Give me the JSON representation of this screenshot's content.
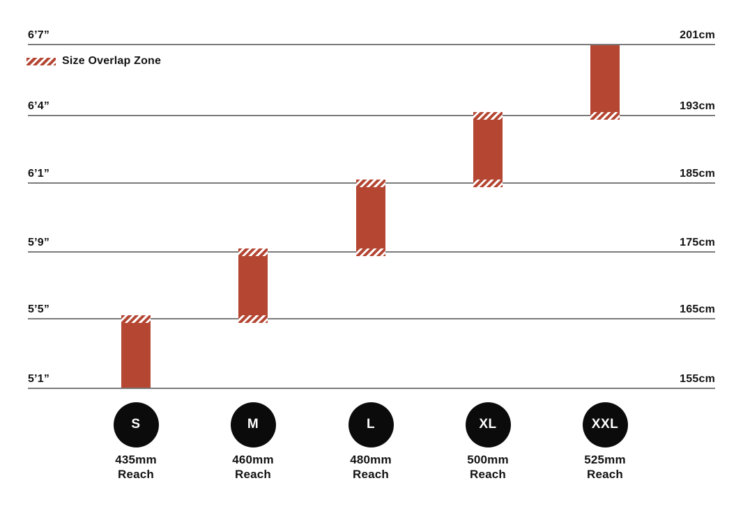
{
  "chart_data": {
    "type": "bar",
    "subtype": "vertical-range-bars",
    "title": "",
    "legend": {
      "label": "Size Overlap Zone",
      "position": "top-left"
    },
    "grid": true,
    "y_axis": {
      "left_unit": "feet-inches",
      "right_unit": "cm",
      "range_cm": [
        155,
        201
      ],
      "rows": [
        {
          "imperial": "6’7”",
          "metric": "201cm",
          "cm": 201
        },
        {
          "imperial": "6’4”",
          "metric": "193cm",
          "cm": 193
        },
        {
          "imperial": "6’1”",
          "metric": "185cm",
          "cm": 185
        },
        {
          "imperial": "5’9”",
          "metric": "175cm",
          "cm": 175
        },
        {
          "imperial": "5’5”",
          "metric": "165cm",
          "cm": 165
        },
        {
          "imperial": "5’1”",
          "metric": "155cm",
          "cm": 155
        }
      ]
    },
    "sizes": [
      {
        "label": "S",
        "height_range_cm": [
          155,
          165
        ],
        "overlap_top": true,
        "overlap_bottom": false,
        "reach_text": "435mm",
        "reach_word": "Reach",
        "reach_mm": 435
      },
      {
        "label": "M",
        "height_range_cm": [
          165,
          175
        ],
        "overlap_top": true,
        "overlap_bottom": true,
        "reach_text": "460mm",
        "reach_word": "Reach",
        "reach_mm": 460
      },
      {
        "label": "L",
        "height_range_cm": [
          175,
          185
        ],
        "overlap_top": true,
        "overlap_bottom": true,
        "reach_text": "480mm",
        "reach_word": "Reach",
        "reach_mm": 480
      },
      {
        "label": "XL",
        "height_range_cm": [
          185,
          193
        ],
        "overlap_top": true,
        "overlap_bottom": true,
        "reach_text": "500mm",
        "reach_word": "Reach",
        "reach_mm": 500
      },
      {
        "label": "XXL",
        "height_range_cm": [
          193,
          201
        ],
        "overlap_top": false,
        "overlap_bottom": true,
        "reach_text": "525mm",
        "reach_word": "Reach",
        "reach_mm": 525
      }
    ],
    "colors": {
      "bar": "#b44632",
      "grid_line": "#7a7a7a",
      "text": "#121212",
      "circle": "#0b0b0b",
      "circle_text": "#ffffff",
      "background": "#ffffff"
    }
  }
}
